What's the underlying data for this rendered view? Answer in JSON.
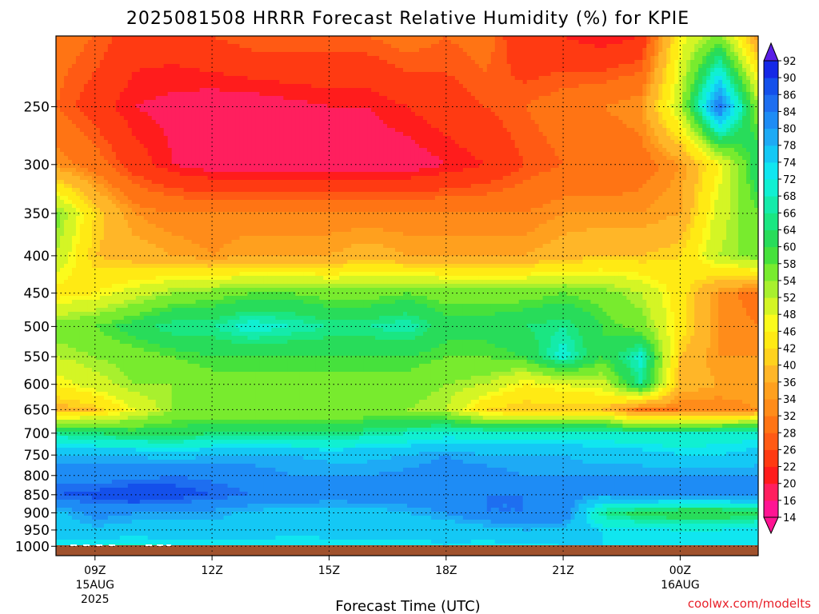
{
  "chart_data": {
    "type": "heatmap",
    "title": "2025081508 HRRR Forecast Relative Humidity (%) for KPIE",
    "xlabel": "Forecast Time (UTC)",
    "ylabel": "",
    "credit": "coolwx.com/modelts",
    "x_hours": [
      8,
      9,
      10,
      11,
      12,
      13,
      14,
      15,
      16,
      17,
      18,
      19,
      20,
      21,
      22,
      23,
      24,
      25,
      26
    ],
    "xlim": [
      8,
      26
    ],
    "x_ticks": [
      {
        "hour": 9,
        "label": "09Z",
        "date": "15AUG",
        "year": "2025"
      },
      {
        "hour": 12,
        "label": "12Z"
      },
      {
        "hour": 15,
        "label": "15Z"
      },
      {
        "hour": 18,
        "label": "18Z"
      },
      {
        "hour": 21,
        "label": "21Z"
      },
      {
        "hour": 24,
        "label": "00Z",
        "date": "16AUG"
      }
    ],
    "y_levels": [
      1000,
      950,
      900,
      850,
      800,
      750,
      700,
      650,
      600,
      550,
      500,
      450,
      400,
      350,
      300,
      250,
      200
    ],
    "y_ticks": [
      "1000",
      "950",
      "900",
      "850",
      "800",
      "750",
      "700",
      "650",
      "600",
      "550",
      "500",
      "450",
      "400",
      "350",
      "300",
      "250"
    ],
    "ylim_hpa": [
      1030,
      200
    ],
    "y_axis": "log-pressure, inverted",
    "grid": true,
    "surface_band_color": "#a0522d",
    "rh": [
      [
        72,
        72,
        71,
        72,
        72,
        73,
        72,
        72,
        72,
        73,
        74,
        73,
        73,
        74,
        74,
        72,
        74,
        73,
        73
      ],
      [
        76,
        77,
        76,
        77,
        77,
        76,
        75,
        76,
        76,
        75,
        75,
        76,
        78,
        77,
        74,
        73,
        72,
        72,
        74
      ],
      [
        76,
        82,
        80,
        79,
        79,
        77,
        76,
        76,
        76,
        78,
        80,
        84,
        84,
        84,
        66,
        62,
        60,
        60,
        62
      ],
      [
        86,
        87,
        90,
        88,
        86,
        84,
        84,
        82,
        83,
        83,
        84,
        84,
        84,
        82,
        80,
        82,
        82,
        82,
        83
      ],
      [
        82,
        82,
        82,
        84,
        83,
        82,
        80,
        80,
        80,
        81,
        82,
        82,
        80,
        80,
        80,
        80,
        80,
        80,
        80
      ],
      [
        78,
        78,
        78,
        76,
        78,
        78,
        78,
        77,
        77,
        78,
        80,
        78,
        78,
        78,
        76,
        76,
        74,
        74,
        76
      ],
      [
        66,
        64,
        62,
        62,
        64,
        64,
        64,
        64,
        66,
        68,
        70,
        70,
        70,
        70,
        70,
        68,
        68,
        70,
        70
      ],
      [
        38,
        40,
        48,
        54,
        54,
        54,
        54,
        54,
        54,
        54,
        52,
        42,
        40,
        40,
        40,
        30,
        32,
        32,
        34
      ],
      [
        46,
        50,
        54,
        54,
        56,
        56,
        56,
        56,
        56,
        56,
        54,
        52,
        46,
        48,
        50,
        66,
        38,
        36,
        36
      ],
      [
        52,
        54,
        56,
        58,
        60,
        60,
        60,
        60,
        60,
        60,
        58,
        58,
        60,
        70,
        60,
        70,
        40,
        34,
        34
      ],
      [
        56,
        58,
        62,
        66,
        66,
        70,
        68,
        66,
        66,
        68,
        62,
        62,
        64,
        66,
        60,
        56,
        44,
        34,
        32
      ],
      [
        44,
        46,
        50,
        54,
        56,
        58,
        58,
        56,
        56,
        58,
        56,
        56,
        56,
        58,
        56,
        52,
        44,
        34,
        30
      ],
      [
        52,
        40,
        38,
        36,
        34,
        36,
        36,
        36,
        38,
        36,
        36,
        36,
        36,
        38,
        40,
        40,
        42,
        52,
        56
      ],
      [
        56,
        42,
        34,
        32,
        32,
        32,
        32,
        32,
        32,
        32,
        32,
        32,
        32,
        34,
        34,
        34,
        36,
        50,
        58
      ],
      [
        34,
        30,
        24,
        20,
        18,
        18,
        18,
        18,
        18,
        18,
        20,
        22,
        26,
        28,
        28,
        30,
        34,
        46,
        64
      ],
      [
        28,
        24,
        20,
        19,
        18,
        18,
        19,
        20,
        20,
        22,
        24,
        26,
        28,
        30,
        32,
        34,
        52,
        86,
        54
      ],
      [
        30,
        28,
        24,
        24,
        26,
        28,
        28,
        28,
        28,
        30,
        28,
        30,
        22,
        22,
        20,
        22,
        46,
        56,
        34
      ]
    ],
    "colorbar": {
      "levels": [
        14,
        16,
        20,
        22,
        26,
        28,
        32,
        34,
        36,
        40,
        42,
        46,
        48,
        52,
        54,
        58,
        60,
        64,
        66,
        68,
        72,
        74,
        78,
        80,
        84,
        86,
        90,
        92
      ],
      "colors": [
        "#ff1493",
        "#ff1f5e",
        "#ff1c1c",
        "#ff3a12",
        "#ff5a14",
        "#ff7414",
        "#ff8c1a",
        "#ffa01e",
        "#ffb628",
        "#ffd21e",
        "#ffea14",
        "#fbfb1c",
        "#d4f525",
        "#a8f02e",
        "#78eb2e",
        "#46e13c",
        "#28dc5a",
        "#1ae682",
        "#14ebaa",
        "#10f0d2",
        "#10e6f0",
        "#14c8f5",
        "#1eaaf5",
        "#1e8cf5",
        "#1e6ef0",
        "#1450eb",
        "#1428e6",
        "#5a1ee6"
      ]
    }
  }
}
